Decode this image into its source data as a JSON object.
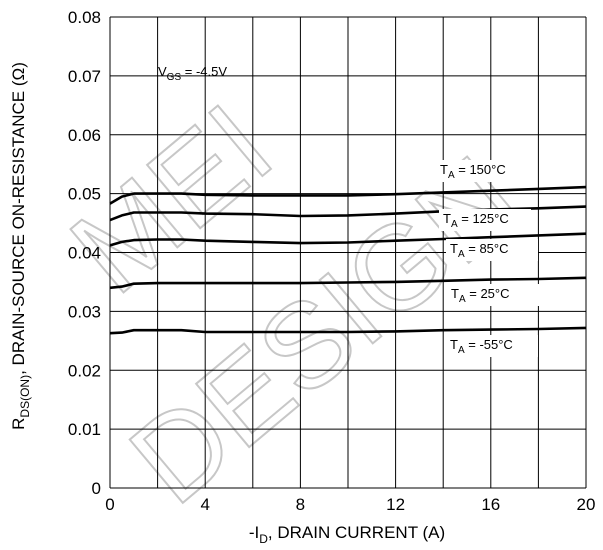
{
  "chart_data": {
    "type": "line",
    "title": "",
    "xlabel": {
      "prefix": "-I",
      "sub": "D",
      "suffix": ", DRAIN CURRENT (A)"
    },
    "ylabel": {
      "prefix": "R",
      "sub": "DS(ON)",
      "suffix": ", DRAIN-SOURCE ON-RESISTANCE (Ω)"
    },
    "xlim": [
      0,
      20
    ],
    "ylim": [
      0,
      0.08
    ],
    "x_ticks": [
      0,
      4,
      8,
      12,
      16,
      20
    ],
    "x_tick_labels": [
      "0",
      "4",
      "8",
      "12",
      "16",
      "20"
    ],
    "x_grid": [
      0,
      2,
      4,
      6,
      8,
      10,
      12,
      14,
      16,
      18,
      20
    ],
    "y_ticks": [
      0,
      0.01,
      0.02,
      0.03,
      0.04,
      0.05,
      0.06,
      0.07,
      0.08
    ],
    "y_tick_labels": [
      "0",
      "0.01",
      "0.02",
      "0.03",
      "0.04",
      "0.05",
      "0.06",
      "0.07",
      "0.08"
    ],
    "grid": true,
    "condition": {
      "prefix": "V",
      "sub": "GS",
      "suffix": " = -4.5V"
    },
    "series": [
      {
        "name": "T_A = 150°C",
        "label_prefix": "T",
        "label_sub": "A",
        "label_suffix": " = 150°C",
        "x": [
          0,
          0.5,
          1,
          2,
          3,
          4,
          6,
          8,
          10,
          12,
          14,
          16,
          18,
          20
        ],
        "y": [
          0.0483,
          0.0495,
          0.05,
          0.05,
          0.05,
          0.0498,
          0.0497,
          0.0497,
          0.0497,
          0.0499,
          0.0502,
          0.0505,
          0.0508,
          0.0511
        ]
      },
      {
        "name": "T_A = 125°C",
        "label_prefix": "T",
        "label_sub": "A",
        "label_suffix": " = 125°C",
        "x": [
          0,
          0.5,
          1,
          2,
          3,
          4,
          6,
          8,
          10,
          12,
          14,
          16,
          18,
          20
        ],
        "y": [
          0.0455,
          0.0463,
          0.0468,
          0.0468,
          0.0468,
          0.0466,
          0.0465,
          0.0462,
          0.0463,
          0.0466,
          0.047,
          0.0473,
          0.0475,
          0.0478
        ]
      },
      {
        "name": "T_A = 85°C",
        "label_prefix": "T",
        "label_sub": "A",
        "label_suffix": " = 85°C",
        "x": [
          0,
          0.5,
          1,
          2,
          3,
          4,
          6,
          8,
          10,
          12,
          14,
          16,
          18,
          20
        ],
        "y": [
          0.0412,
          0.0418,
          0.0421,
          0.0422,
          0.0422,
          0.042,
          0.0418,
          0.0416,
          0.0417,
          0.042,
          0.0423,
          0.0426,
          0.0429,
          0.0432
        ]
      },
      {
        "name": "T_A = 25°C",
        "label_prefix": "T",
        "label_sub": "A",
        "label_suffix": " = 25°C",
        "x": [
          0,
          0.5,
          1,
          2,
          3,
          4,
          6,
          8,
          10,
          12,
          14,
          16,
          18,
          20
        ],
        "y": [
          0.034,
          0.0342,
          0.0347,
          0.0348,
          0.0348,
          0.0348,
          0.0348,
          0.0348,
          0.0349,
          0.035,
          0.0352,
          0.0354,
          0.0355,
          0.0357
        ]
      },
      {
        "name": "T_A = -55°C",
        "label_prefix": "T",
        "label_sub": "A",
        "label_suffix": " = -55°C",
        "x": [
          0,
          0.5,
          1,
          2,
          3,
          4,
          6,
          8,
          10,
          12,
          14,
          16,
          18,
          20
        ],
        "y": [
          0.0263,
          0.0264,
          0.0268,
          0.0268,
          0.0268,
          0.0265,
          0.0265,
          0.0265,
          0.0265,
          0.0266,
          0.0268,
          0.0269,
          0.027,
          0.0272
        ]
      }
    ]
  },
  "watermark": {
    "line1": "MEI",
    "line2": "DESIGN"
  }
}
